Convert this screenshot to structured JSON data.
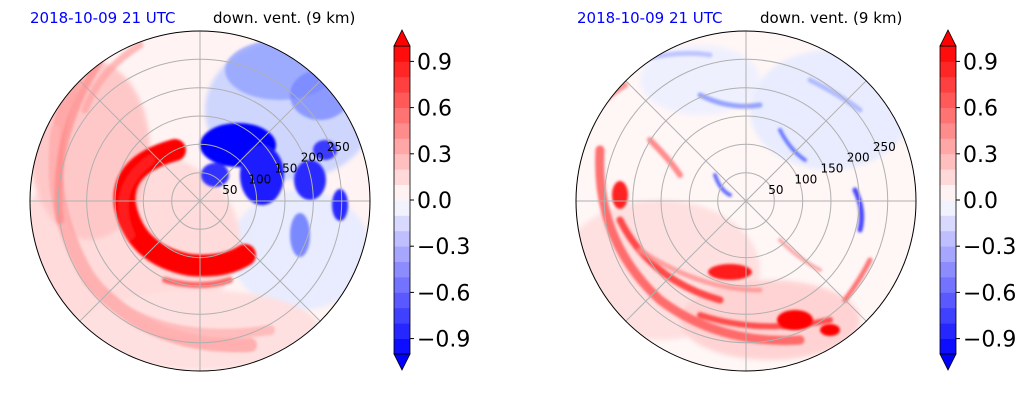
{
  "figure": {
    "panels": [
      {
        "date_label": "2018-10-09 21 UTC",
        "title": "down. vent. (9 km)"
      },
      {
        "date_label": "2018-10-09 21 UTC",
        "title": "down. vent. (9 km)"
      }
    ]
  },
  "chart_data": [
    {
      "type": "heatmap",
      "projection": "polar",
      "title": "down. vent. (9 km)",
      "date_label": "2018-10-09 21 UTC",
      "radial_ticks": [
        50,
        100,
        150,
        200,
        250
      ],
      "rlim": [
        0,
        300
      ],
      "grid": true,
      "colormap": "bwr",
      "colorbar": {
        "ticks": [
          -0.9,
          -0.6,
          -0.3,
          0.0,
          0.3,
          0.6,
          0.9
        ],
        "tick_labels": [
          "−0.9",
          "−0.6",
          "−0.3",
          "0.0",
          "0.3",
          "0.6",
          "0.9"
        ],
        "range": [
          -1.0,
          1.0
        ],
        "extend": "both"
      },
      "features": "strong positive curved band west-southwest of centre; strong negative region north-east quadrant"
    },
    {
      "type": "heatmap",
      "projection": "polar",
      "title": "down. vent. (9 km)",
      "date_label": "2018-10-09 21 UTC",
      "radial_ticks": [
        50,
        100,
        150,
        200,
        250
      ],
      "rlim": [
        0,
        300
      ],
      "grid": true,
      "colormap": "bwr",
      "colorbar": {
        "ticks": [
          -0.9,
          -0.6,
          -0.3,
          0.0,
          0.3,
          0.6,
          0.9
        ],
        "tick_labels": [
          "−0.9",
          "−0.6",
          "−0.3",
          "0.0",
          "0.3",
          "0.6",
          "0.9"
        ],
        "range": [
          -1.0,
          1.0
        ],
        "extend": "both"
      },
      "features": "scattered positive streaks south and west; weak negative patches north and east"
    }
  ]
}
